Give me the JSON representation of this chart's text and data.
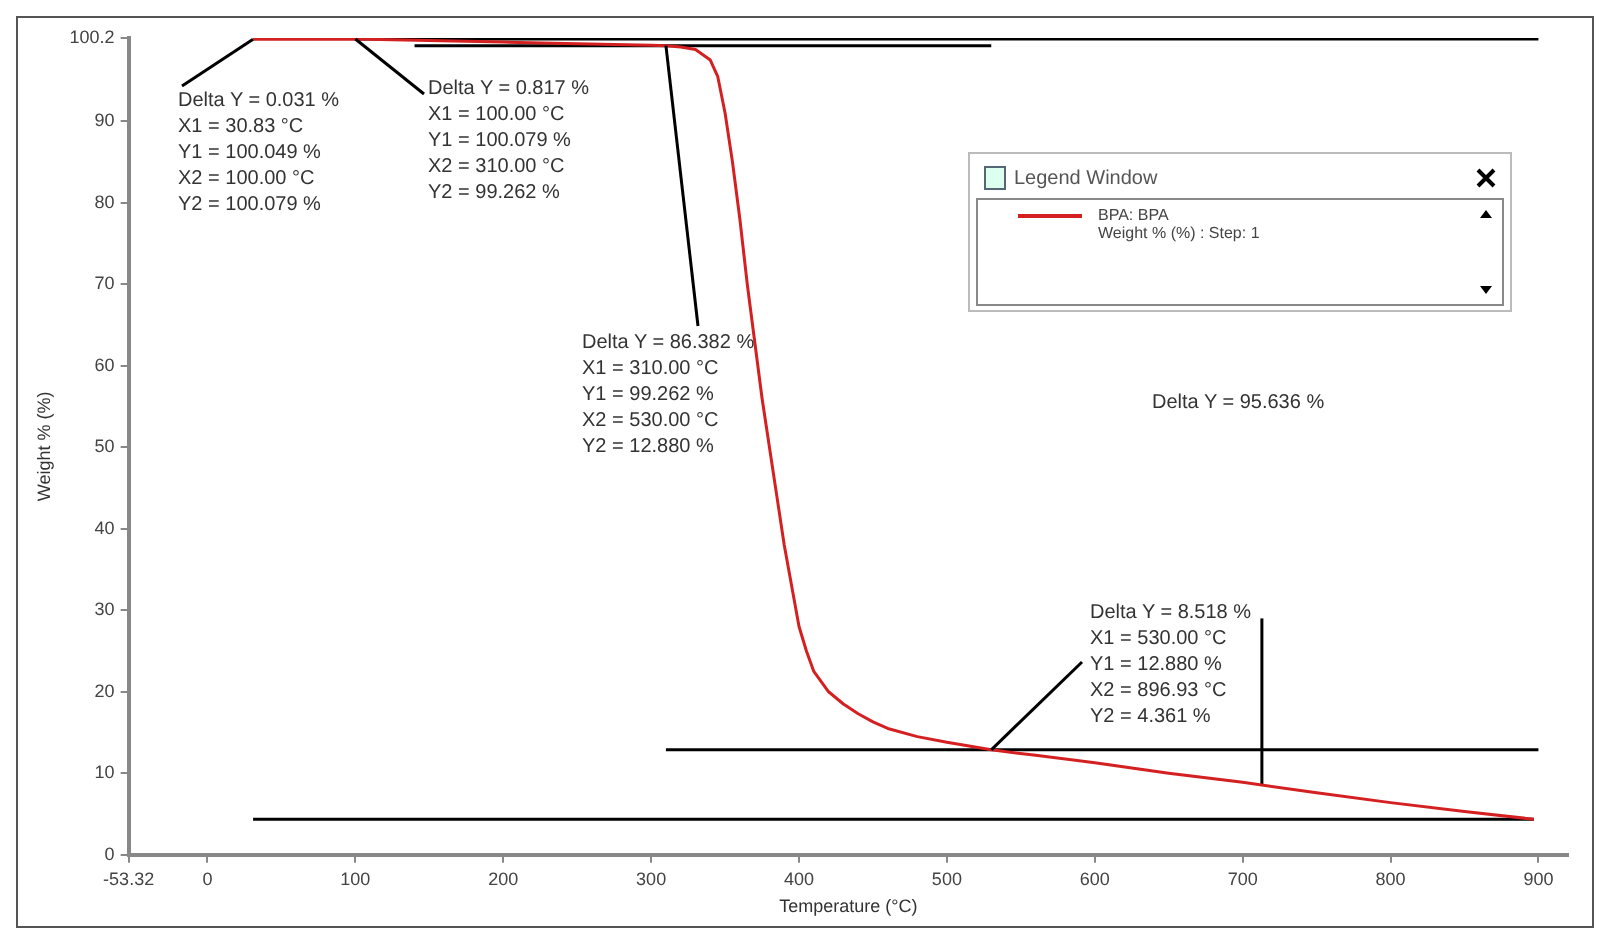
{
  "chart_data": {
    "type": "line",
    "xlabel": "Temperature (°C)",
    "ylabel": "Weight % (%)",
    "legend_title": "Legend Window",
    "xlim": [
      -53.32,
      920
    ],
    "xticks": [
      -53.32,
      0,
      100,
      200,
      300,
      400,
      500,
      600,
      700,
      800,
      900
    ],
    "ylim": [
      0,
      100.2
    ],
    "yticks": [
      0,
      10,
      20,
      30,
      40,
      50,
      60,
      70,
      80,
      90,
      100.2
    ],
    "grid": false,
    "legend": "top right",
    "marker": "none",
    "line_style": "solid",
    "series": [
      {
        "name": "BPA: BPA",
        "color": "#d42020",
        "x": [
          30.83,
          100,
          150,
          200,
          250,
          300,
          310,
          320,
          330,
          340,
          345,
          350,
          355,
          360,
          365,
          370,
          375,
          380,
          385,
          390,
          395,
          400,
          405,
          410,
          420,
          430,
          440,
          450,
          460,
          480,
          500,
          530,
          560,
          600,
          650,
          700,
          750,
          800,
          850,
          896.93
        ],
        "values": [
          100.049,
          100.079,
          99.9,
          99.7,
          99.5,
          99.3,
          99.262,
          99.1,
          98.8,
          97.5,
          95.5,
          91,
          85,
          78,
          70,
          63,
          56,
          50,
          44,
          38,
          33,
          28,
          25,
          22.5,
          20,
          18.5,
          17.3,
          16.3,
          15.5,
          14.5,
          13.8,
          12.88,
          12.2,
          11.3,
          10,
          8.9,
          7.6,
          6.4,
          5.3,
          4.361
        ]
      },
      {
        "color": "#000000",
        "x": [
          100,
          900
        ],
        "values": [
          100.079,
          100.079
        ]
      },
      {
        "color": "#000000",
        "x": [
          140,
          530
        ],
        "values": [
          99.262,
          99.262
        ]
      },
      {
        "color": "#000000",
        "x": [
          310,
          900
        ],
        "values": [
          12.88,
          12.88
        ]
      },
      {
        "color": "#000000",
        "x": [
          30.83,
          896.93
        ],
        "values": [
          4.361,
          4.361
        ]
      },
      {
        "color": "#000000",
        "x": [
          713,
          713
        ],
        "values": [
          8.6,
          29
        ]
      }
    ],
    "annotations": [
      {
        "text": "Delta Y = 0.031 %\nX1 = 30.83 °C\nY1 = 100.049 %\nX2 = 100.00 °C\nY2 = 100.079 %",
        "x": 30.83,
        "y": 100.049
      },
      {
        "text": "Delta Y = 0.817 %\nX1 = 100.00 °C\nY1 = 100.079 %\nX2 = 310.00 °C\nY2 = 99.262 %",
        "x": 100,
        "y": 100.079
      },
      {
        "text": "Delta Y = 86.382 %\nX1 = 310.00 °C\nY1 = 99.262 %\nX2 = 530.00 °C\nY2 = 12.880 %",
        "x": 310,
        "y": 99.262
      },
      {
        "text": "Delta Y = 8.518 %\nX1 = 530.00 °C\nY1 = 12.880 %\nX2 = 896.93 °C\nY2 = 4.361 %",
        "x": 530,
        "y": 12.88
      },
      "Delta Y = 95.636 %",
      "Weight % (%) : Step: 1"
    ]
  }
}
